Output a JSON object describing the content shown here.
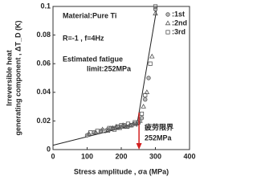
{
  "chart_data": {
    "type": "scatter",
    "xlabel": "Stress amplitude , σa (MPa)",
    "ylabel": [
      "Irreversible heat",
      "generating component , ΔT_D (K)"
    ],
    "xlim": [
      0,
      400
    ],
    "xticks": [
      0,
      100,
      200,
      300,
      400
    ],
    "ylim": [
      0,
      0.1
    ],
    "yticks": [
      0,
      0.02,
      0.04,
      0.06,
      0.08,
      0.1
    ],
    "annotations": [
      "Material:Pure Ti",
      "R=-1 , f=4Hz",
      "Estimated fatigue",
      "limit:252MPa"
    ],
    "limit_label": [
      "疲劳限界",
      "252MPa"
    ],
    "fatigue_limit": 252,
    "arrow_color": "#d32020",
    "series": [
      {
        "name": ":1st",
        "marker": "circle",
        "color": "#555",
        "x": [
          100,
          120,
          140,
          160,
          170,
          180,
          190,
          200,
          210,
          220,
          230,
          240,
          250,
          260,
          270,
          280,
          300
        ],
        "values": [
          0.01,
          0.012,
          0.013,
          0.014,
          0.015,
          0.015,
          0.016,
          0.016,
          0.017,
          0.016,
          0.017,
          0.018,
          0.019,
          0.022,
          0.035,
          0.05,
          0.098
        ]
      },
      {
        "name": ":2nd",
        "marker": "triangle",
        "color": "#555",
        "x": [
          105,
          125,
          145,
          160,
          175,
          185,
          195,
          205,
          215,
          225,
          235,
          245,
          255,
          265,
          275,
          290,
          300
        ],
        "values": [
          0.011,
          0.012,
          0.014,
          0.013,
          0.015,
          0.016,
          0.015,
          0.017,
          0.016,
          0.017,
          0.018,
          0.018,
          0.02,
          0.03,
          0.04,
          0.065,
          0.095
        ]
      },
      {
        "name": ":3rd",
        "marker": "square",
        "color": "#555",
        "x": [
          110,
          130,
          150,
          165,
          180,
          190,
          200,
          210,
          220,
          230,
          240,
          250,
          260,
          270,
          285,
          300
        ],
        "values": [
          0.012,
          0.013,
          0.013,
          0.015,
          0.014,
          0.016,
          0.017,
          0.016,
          0.018,
          0.017,
          0.019,
          0.019,
          0.025,
          0.038,
          0.06,
          0.1
        ]
      }
    ],
    "fit_lines": [
      {
        "x": [
          0,
          250
        ],
        "values": [
          0.003,
          0.018
        ]
      },
      {
        "x": [
          245,
          305
        ],
        "values": [
          0.016,
          0.1
        ]
      }
    ]
  }
}
